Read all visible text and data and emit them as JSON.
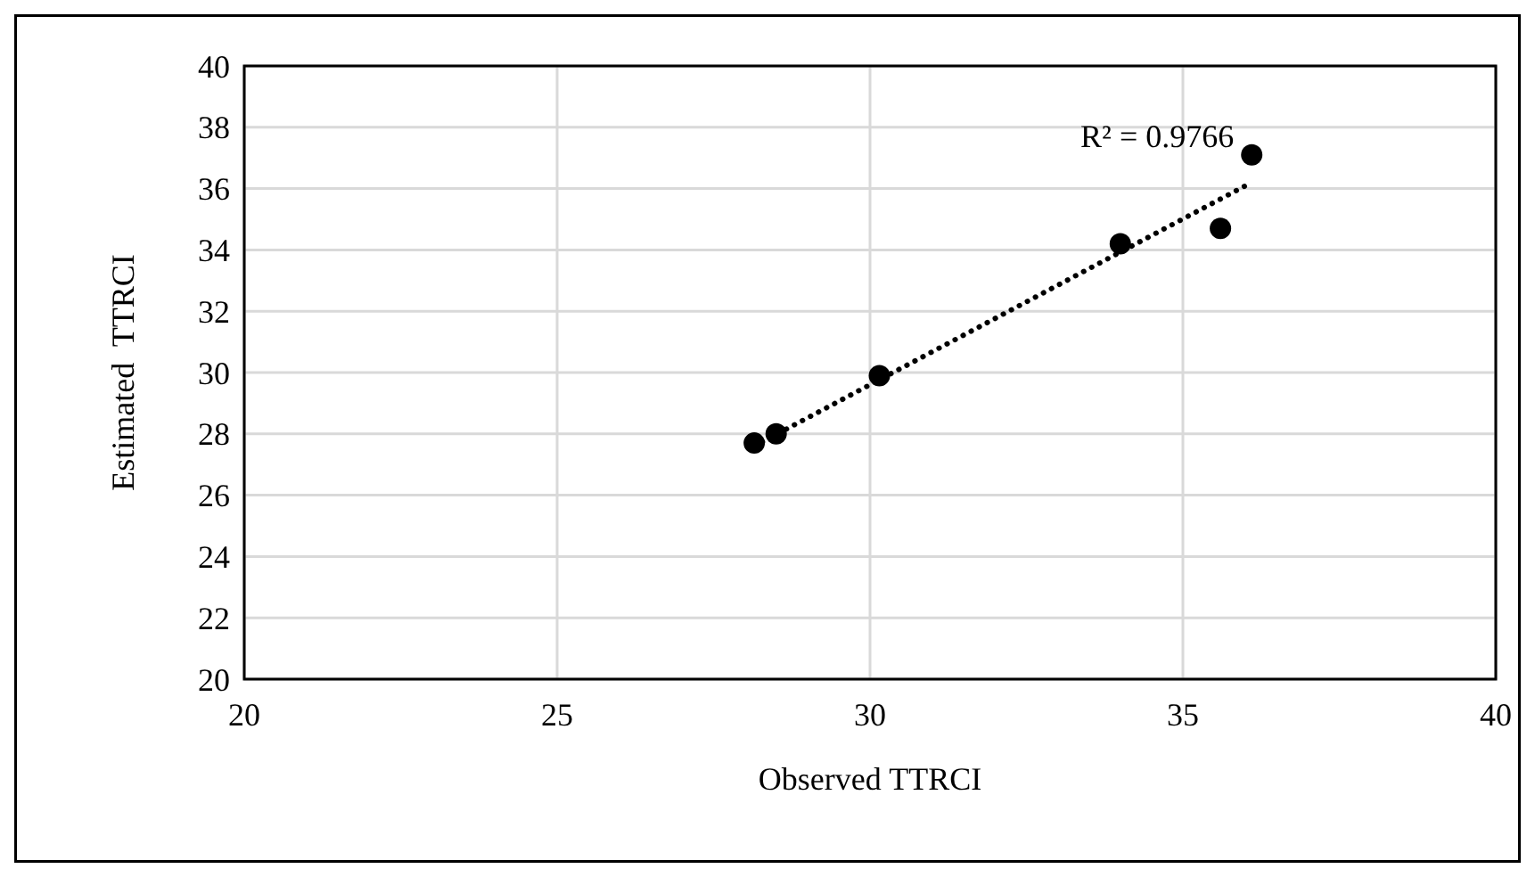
{
  "chart_data": {
    "type": "scatter",
    "xlabel": "Observed TTRCI",
    "ylabel": "Estimated  TTRCI",
    "xlim": [
      20,
      40
    ],
    "xticks": [
      20,
      25,
      30,
      35,
      40
    ],
    "ylim": [
      20,
      40
    ],
    "yticks": [
      20,
      22,
      24,
      26,
      28,
      30,
      32,
      34,
      36,
      38,
      40
    ],
    "grid": true,
    "series": [
      {
        "color": "#000000",
        "marker": "circle",
        "x": [
          28.15,
          28.5,
          30.15,
          34.0,
          35.6,
          36.1
        ],
        "values": [
          27.7,
          28.0,
          29.9,
          34.2,
          34.7,
          37.1
        ]
      },
      {
        "type": "line",
        "color": "#000000",
        "marker": "none",
        "line_style": "dotted",
        "x": [
          28.15,
          36.1
        ],
        "values": [
          27.6,
          36.2
        ]
      }
    ],
    "annotations": [
      "R² = 0.9766"
    ]
  }
}
